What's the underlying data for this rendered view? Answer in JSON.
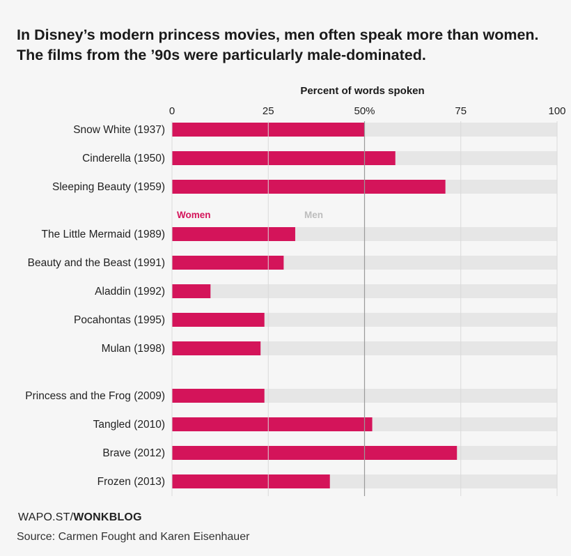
{
  "title": "In Disney’s modern princess movies, men often speak more than women. The films from the ’90s were particularly male-dominated.",
  "footer": {
    "brand_prefix": "WAPO.ST/",
    "brand_name": "WONKBLOG",
    "source": "Source: Carmen Fought and Karen Eisenhauer"
  },
  "colors": {
    "women": "#d4145a",
    "men": "#e6e6e6",
    "grid": "#d9d9d9",
    "midline": "#9a9a9a",
    "women_label": "#d4145a",
    "men_label": "#bdbdbd"
  },
  "chart_data": {
    "type": "bar",
    "orientation": "horizontal",
    "stacked": true,
    "xlabel": "Percent of words spoken",
    "xlim": [
      0,
      100
    ],
    "ticks": [
      {
        "value": 0,
        "label": "0"
      },
      {
        "value": 25,
        "label": "25"
      },
      {
        "value": 50,
        "label": "50%"
      },
      {
        "value": 75,
        "label": "75"
      },
      {
        "value": 100,
        "label": "100"
      }
    ],
    "legend": {
      "women": "Women",
      "men": "Men",
      "placement": "inline above The Little Mermaid"
    },
    "groups": [
      [
        "Snow White (1937)",
        "Cinderella (1950)",
        "Sleeping Beauty (1959)"
      ],
      [
        "The Little Mermaid (1989)",
        "Beauty and the Beast (1991)",
        "Aladdin (1992)",
        "Pocahontas (1995)",
        "Mulan (1998)"
      ],
      [
        "Princess and the Frog (2009)",
        "Tangled (2010)",
        "Brave (2012)",
        "Frozen (2013)"
      ]
    ],
    "categories": [
      "Snow White (1937)",
      "Cinderella (1950)",
      "Sleeping Beauty (1959)",
      "The Little Mermaid (1989)",
      "Beauty and the Beast (1991)",
      "Aladdin (1992)",
      "Pocahontas (1995)",
      "Mulan (1998)",
      "Princess and the Frog (2009)",
      "Tangled (2010)",
      "Brave (2012)",
      "Frozen (2013)"
    ],
    "series": [
      {
        "name": "Women",
        "values": [
          50,
          58,
          71,
          32,
          29,
          10,
          24,
          23,
          24,
          52,
          74,
          41
        ]
      },
      {
        "name": "Men",
        "values": [
          50,
          42,
          29,
          68,
          71,
          90,
          76,
          77,
          76,
          48,
          26,
          59
        ]
      }
    ]
  }
}
